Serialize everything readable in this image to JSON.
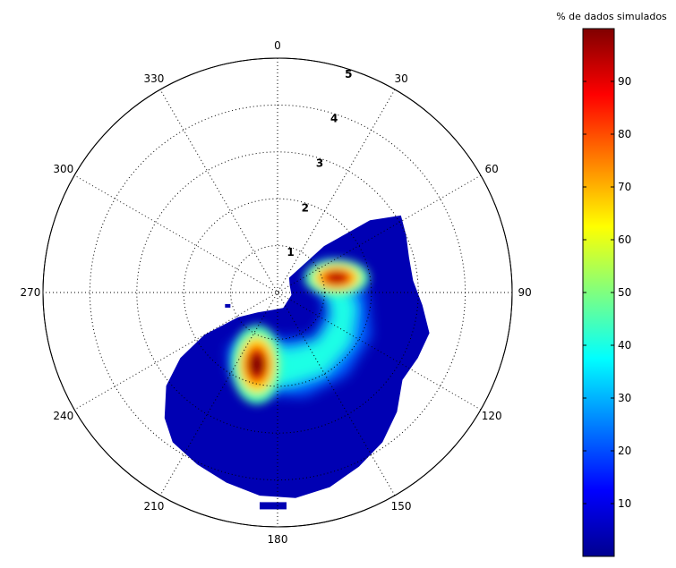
{
  "chart_data": {
    "type": "heatmap",
    "subtype": "polar-density",
    "angular_axis": {
      "zero_location": "top",
      "direction": "clockwise",
      "tick_labels": [
        "0",
        "30",
        "60",
        "90",
        "120",
        "150",
        "180",
        "210",
        "240",
        "270",
        "300",
        "330"
      ]
    },
    "radial_axis": {
      "range": [
        0,
        5
      ],
      "tick_labels": [
        "1",
        "2",
        "3",
        "4",
        "5"
      ],
      "grid": "dotted"
    },
    "colorbar": {
      "title": "% de dados simulados",
      "range": [
        0,
        100
      ],
      "tick_labels": [
        "10",
        "20",
        "30",
        "40",
        "50",
        "60",
        "70",
        "80",
        "90"
      ],
      "colormap": "jet"
    },
    "peaks": [
      {
        "direction_deg": 76,
        "r": 1.3,
        "value": 95
      },
      {
        "direction_deg": 196,
        "r": 1.6,
        "value": 100
      }
    ],
    "density_region": {
      "direction_range_deg": [
        40,
        235
      ],
      "r_range": [
        0.2,
        4.6
      ],
      "value_range": [
        1,
        100
      ]
    },
    "colors": {
      "background": "#ffffff",
      "grid": "#000000",
      "low": "#00008f",
      "high": "#800000"
    }
  }
}
